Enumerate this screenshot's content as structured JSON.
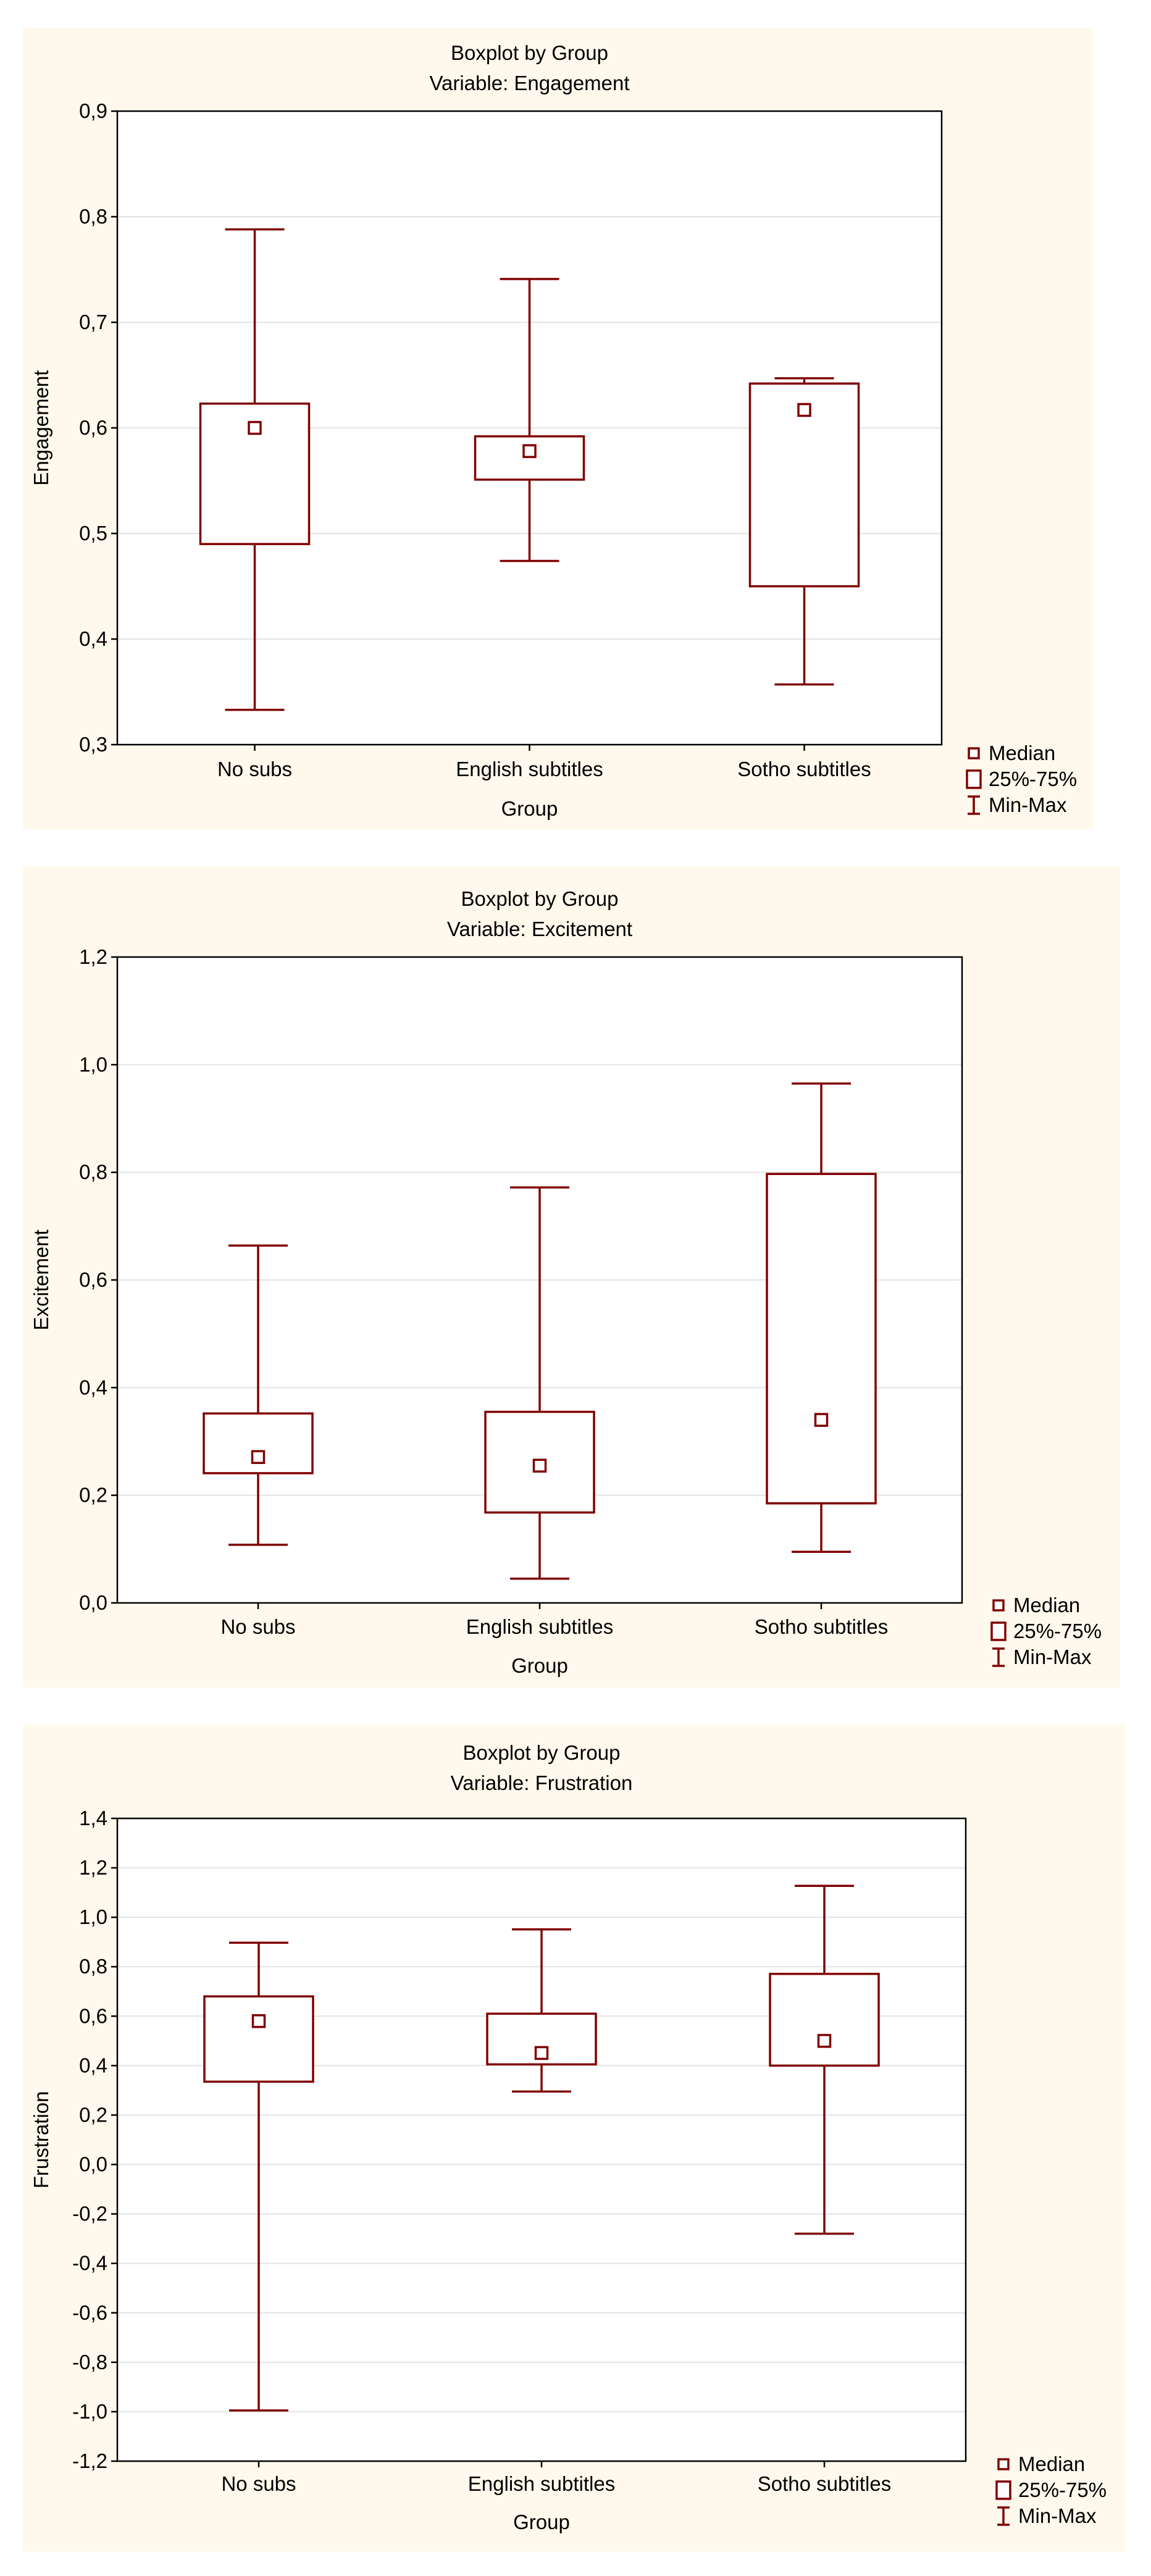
{
  "colors": {
    "panel_background": "#fef9ec",
    "box_stroke": "#800000",
    "grid": "#e3e3e3"
  },
  "chart_data": [
    {
      "type": "boxplot",
      "title": "Boxplot by Group",
      "subtitle": "Variable: Engagement",
      "xlabel": "Group",
      "ylabel": "Engagement",
      "ylim": [
        0.3,
        0.9
      ],
      "yticks": [
        0.3,
        0.4,
        0.5,
        0.6,
        0.7,
        0.8,
        0.9
      ],
      "ytick_labels": [
        "0,3",
        "0,4",
        "0,5",
        "0,6",
        "0,7",
        "0,8",
        "0,9"
      ],
      "grid": true,
      "legend_position": "bottom-right-outside",
      "legend": [
        "Median",
        "25%-75%",
        "Min-Max"
      ],
      "categories": [
        "No subs",
        "English subtitles",
        "Sotho subtitles"
      ],
      "series": [
        {
          "min": 0.333,
          "q1": 0.49,
          "median": 0.6,
          "q3": 0.623,
          "max": 0.788
        },
        {
          "min": 0.474,
          "q1": 0.551,
          "median": 0.578,
          "q3": 0.592,
          "max": 0.741
        },
        {
          "min": 0.357,
          "q1": 0.45,
          "median": 0.617,
          "q3": 0.642,
          "max": 0.647
        }
      ]
    },
    {
      "type": "boxplot",
      "title": "Boxplot by Group",
      "subtitle": "Variable: Excitement",
      "xlabel": "Group",
      "ylabel": "Excitement",
      "ylim": [
        0.0,
        1.2
      ],
      "yticks": [
        0.0,
        0.2,
        0.4,
        0.6,
        0.8,
        1.0,
        1.2
      ],
      "ytick_labels": [
        "0,0",
        "0,2",
        "0,4",
        "0,6",
        "0,8",
        "1,0",
        "1,2"
      ],
      "grid": true,
      "legend_position": "bottom-right-outside",
      "legend": [
        "Median",
        "25%-75%",
        "Min-Max"
      ],
      "categories": [
        "No subs",
        "English subtitles",
        "Sotho subtitles"
      ],
      "series": [
        {
          "min": 0.108,
          "q1": 0.241,
          "median": 0.271,
          "q3": 0.352,
          "max": 0.664
        },
        {
          "min": 0.045,
          "q1": 0.168,
          "median": 0.255,
          "q3": 0.355,
          "max": 0.772
        },
        {
          "min": 0.095,
          "q1": 0.185,
          "median": 0.34,
          "q3": 0.797,
          "max": 0.965
        }
      ]
    },
    {
      "type": "boxplot",
      "title": "Boxplot by Group",
      "subtitle": "Variable: Frustration",
      "xlabel": "Group",
      "ylabel": "Frustration",
      "ylim": [
        -1.2,
        1.4
      ],
      "yticks": [
        -1.2,
        -1.0,
        -0.8,
        -0.6,
        -0.4,
        -0.2,
        0.0,
        0.2,
        0.4,
        0.6,
        0.8,
        1.0,
        1.2,
        1.4
      ],
      "ytick_labels": [
        "-1,2",
        "-1,0",
        "-0,8",
        "-0,6",
        "-0,4",
        "-0,2",
        "0,0",
        "0,2",
        "0,4",
        "0,6",
        "0,8",
        "1,0",
        "1,2",
        "1,4"
      ],
      "grid": true,
      "legend_position": "bottom-right-outside",
      "legend": [
        "Median",
        "25%-75%",
        "Min-Max"
      ],
      "categories": [
        "No subs",
        "English subtitles",
        "Sotho subtitles"
      ],
      "series": [
        {
          "min": -0.995,
          "q1": 0.335,
          "median": 0.58,
          "q3": 0.68,
          "max": 0.897
        },
        {
          "min": 0.295,
          "q1": 0.405,
          "median": 0.451,
          "q3": 0.61,
          "max": 0.951
        },
        {
          "min": -0.28,
          "q1": 0.4,
          "median": 0.5,
          "q3": 0.771,
          "max": 1.127
        }
      ]
    }
  ]
}
